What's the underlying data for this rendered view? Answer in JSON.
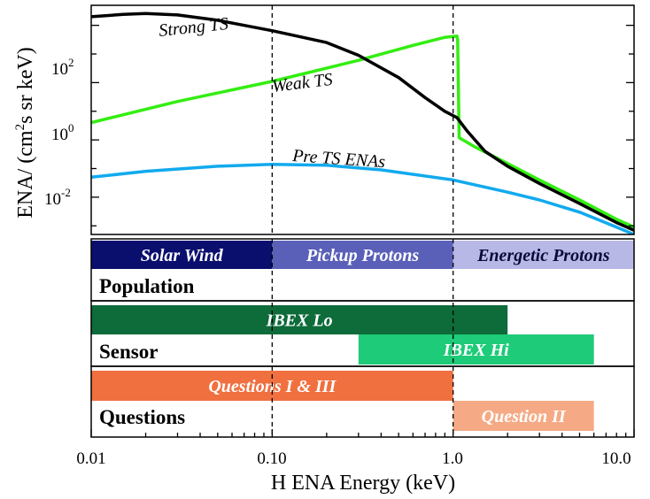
{
  "chart_data": {
    "type": "line",
    "xlabel": "H ENA Energy (keV)",
    "ylabel_parts": [
      "ENA/ (cm",
      "2",
      "s sr keV)"
    ],
    "x_scale": "log",
    "y_scale": "log",
    "xlim": [
      0.01,
      10.0
    ],
    "ylim": [
      0.0005,
      50000
    ],
    "x_ticks": [
      {
        "value": 0.01,
        "label": "0.01"
      },
      {
        "value": 0.1,
        "label": "0.10"
      },
      {
        "value": 1.0,
        "label": "1.0"
      },
      {
        "value": 10.0,
        "label": "10.0"
      }
    ],
    "y_ticks": [
      {
        "value": 100,
        "base": "10",
        "exp": "2"
      },
      {
        "value": 1,
        "base": "10",
        "exp": "0"
      },
      {
        "value": 0.01,
        "base": "10",
        "exp": "-2"
      }
    ],
    "vlines": [
      0.1,
      1.0
    ],
    "series": [
      {
        "name": "Strong TS",
        "color": "#000000",
        "points": [
          [
            0.01,
            20000
          ],
          [
            0.015,
            24000
          ],
          [
            0.02,
            26000
          ],
          [
            0.03,
            23000
          ],
          [
            0.05,
            15000
          ],
          [
            0.1,
            6500
          ],
          [
            0.2,
            2500
          ],
          [
            0.3,
            900
          ],
          [
            0.5,
            150
          ],
          [
            0.7,
            30
          ],
          [
            0.9,
            10
          ],
          [
            1.05,
            6
          ],
          [
            1.2,
            2
          ],
          [
            1.5,
            0.4
          ],
          [
            2,
            0.12
          ],
          [
            3,
            0.03
          ],
          [
            5,
            0.006
          ],
          [
            8,
            0.0013
          ],
          [
            10,
            0.0007
          ]
        ]
      },
      {
        "name": "Weak TS",
        "color": "#33ee11",
        "points": [
          [
            0.01,
            4
          ],
          [
            0.03,
            22
          ],
          [
            0.1,
            110
          ],
          [
            0.3,
            600
          ],
          [
            0.6,
            2000
          ],
          [
            0.9,
            3800
          ],
          [
            1.05,
            4200
          ],
          [
            1.06,
            3000
          ],
          [
            1.08,
            1.2
          ],
          [
            1.3,
            0.6
          ],
          [
            2,
            0.15
          ],
          [
            3,
            0.04
          ],
          [
            5,
            0.008
          ],
          [
            8,
            0.0017
          ],
          [
            10,
            0.0009
          ]
        ]
      },
      {
        "name": "Pre TS ENAs",
        "color": "#11aaee",
        "points": [
          [
            0.01,
            0.05
          ],
          [
            0.02,
            0.08
          ],
          [
            0.05,
            0.12
          ],
          [
            0.1,
            0.14
          ],
          [
            0.2,
            0.13
          ],
          [
            0.4,
            0.09
          ],
          [
            1.0,
            0.04
          ],
          [
            2,
            0.015
          ],
          [
            3,
            0.008
          ],
          [
            5,
            0.003
          ],
          [
            8,
            0.0009
          ],
          [
            10,
            0.0005
          ]
        ]
      }
    ],
    "curve_labels": [
      {
        "text": "Strong TS",
        "color": "#000000"
      },
      {
        "text": "Weak TS",
        "color": "#33ee11"
      },
      {
        "text": "Pre TS ENAs",
        "color": "#11aaee"
      }
    ],
    "panels": [
      {
        "label": "Population",
        "bands": [
          {
            "text": "Solar Wind",
            "from": 0.01,
            "to": 0.1,
            "color": "#0a0f6e",
            "text_color": "#ffffff"
          },
          {
            "text": "Pickup Protons",
            "from": 0.1,
            "to": 1.0,
            "color": "#5a5fb8",
            "text_color": "#ffffff"
          },
          {
            "text": "Energetic Protons",
            "from": 1.0,
            "to": 10.0,
            "color": "#b8b8e6",
            "text_color": "#0a0a3a"
          }
        ]
      },
      {
        "label": "Sensor",
        "bands": [
          {
            "text": "IBEX Lo",
            "from": 0.01,
            "to": 2.0,
            "color": "#0e6b3a",
            "text_color": "#ffffff"
          },
          {
            "text": "IBEX Hi",
            "from": 0.3,
            "to": 6.0,
            "color": "#1ecb78",
            "text_color": "#ffffff"
          }
        ]
      },
      {
        "label": "Questions",
        "bands": [
          {
            "text": "Questions I & III",
            "from": 0.01,
            "to": 1.0,
            "color": "#f07040",
            "text_color": "#ffffff"
          },
          {
            "text": "Question  II",
            "from": 1.0,
            "to": 6.0,
            "color": "#f5aa85",
            "text_color": "#ffffff"
          }
        ]
      }
    ]
  }
}
